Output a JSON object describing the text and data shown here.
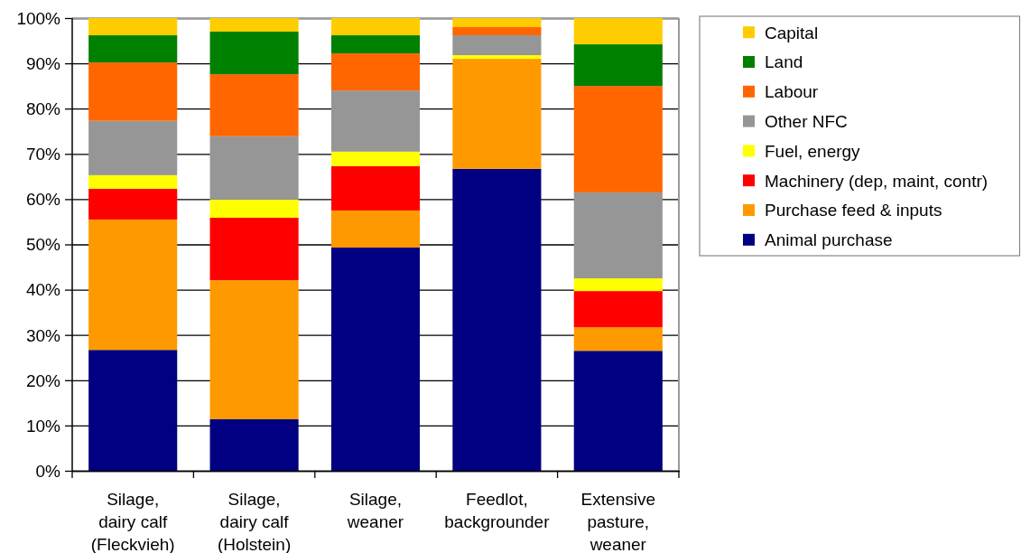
{
  "chart_data": {
    "type": "bar",
    "stacked": true,
    "categories": [
      "Silage, dairy calf (Fleckvieh)",
      "Silage, dairy calf (Holstein)",
      "Silage, weaner",
      "Feedlot, backgrounder",
      "Extensive pasture, weaner"
    ],
    "series": [
      {
        "name": "Animal purchase",
        "color": "#000080",
        "values": [
          26.7,
          11.4,
          49.3,
          66.7,
          26.5
        ]
      },
      {
        "name": "Purchase feed & inputs",
        "color": "#ff9900",
        "values": [
          28.8,
          30.7,
          8.2,
          24.3,
          5.2
        ]
      },
      {
        "name": "Machinery (dep, maint, contr)",
        "color": "#ff0000",
        "values": [
          6.8,
          13.8,
          9.8,
          0,
          8.0
        ]
      },
      {
        "name": "Fuel, energy",
        "color": "#ffff00",
        "values": [
          3.0,
          4.0,
          3.2,
          0.8,
          2.8
        ]
      },
      {
        "name": "Other NFC",
        "color": "#969696",
        "values": [
          12.0,
          14.0,
          13.5,
          4.4,
          19.0
        ]
      },
      {
        "name": "Labour",
        "color": "#ff6600",
        "values": [
          12.9,
          13.7,
          8.2,
          1.8,
          23.5
        ]
      },
      {
        "name": "Land",
        "color": "#008000",
        "values": [
          6.0,
          9.4,
          4.0,
          0,
          9.2
        ]
      },
      {
        "name": "Capital",
        "color": "#ffcc00",
        "values": [
          3.8,
          3.0,
          3.8,
          2.0,
          5.8
        ]
      }
    ],
    "ylim": [
      0,
      100
    ],
    "yticks": [
      {
        "value": 0,
        "label": "0%"
      },
      {
        "value": 10,
        "label": "10%"
      },
      {
        "value": 20,
        "label": "20%"
      },
      {
        "value": 30,
        "label": "30%"
      },
      {
        "value": 40,
        "label": "40%"
      },
      {
        "value": 50,
        "label": "50%"
      },
      {
        "value": 60,
        "label": "60%"
      },
      {
        "value": 70,
        "label": "70%"
      },
      {
        "value": 80,
        "label": "80%"
      },
      {
        "value": 90,
        "label": "90%"
      },
      {
        "value": 100,
        "label": "100%"
      }
    ],
    "grid": "y",
    "legend": "right"
  }
}
